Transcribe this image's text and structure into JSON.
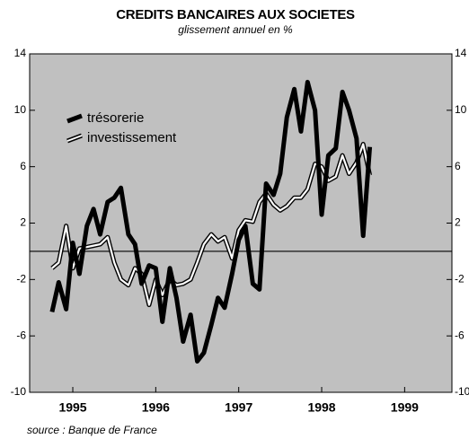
{
  "chart_data": {
    "type": "line",
    "title": "CREDITS BANCAIRES AUX SOCIETES",
    "subtitle": "glissement annuel en %",
    "source": "source : Banque de France",
    "x": [
      1995.25,
      1995.33,
      1995.42,
      1995.5,
      1995.58,
      1995.67,
      1995.75,
      1995.83,
      1995.92,
      1996.0,
      1996.08,
      1996.17,
      1996.25,
      1996.33,
      1996.42,
      1996.5,
      1996.58,
      1996.67,
      1996.75,
      1996.83,
      1996.92,
      1997.0,
      1997.08,
      1997.17,
      1997.25,
      1997.33,
      1997.42,
      1997.5,
      1997.58,
      1997.67,
      1997.75,
      1997.83,
      1997.92,
      1998.0,
      1998.08,
      1998.17,
      1998.25,
      1998.33,
      1998.42,
      1998.5,
      1998.58,
      1998.67,
      1998.75,
      1998.83,
      1998.92,
      1999.0,
      1999.08
    ],
    "series": [
      {
        "name": "investissement",
        "color": "#ffffff",
        "outline": "#000000",
        "values": [
          -1.2,
          -0.8,
          1.8,
          -1.2,
          0.2,
          0.3,
          0.4,
          0.5,
          1.0,
          -0.8,
          -2.0,
          -2.4,
          -1.2,
          -1.6,
          -3.8,
          -2.0,
          -3.1,
          -2.0,
          -2.4,
          -2.3,
          -2.0,
          -0.8,
          0.5,
          1.2,
          0.7,
          1.0,
          -0.5,
          1.5,
          2.2,
          2.1,
          3.5,
          4.1,
          3.3,
          2.9,
          3.2,
          3.8,
          3.8,
          4.4,
          6.2,
          6.0,
          5.0,
          5.3,
          6.8,
          5.5,
          6.3,
          7.6,
          5.4
        ]
      },
      {
        "name": "trésorerie",
        "color": "#000000",
        "values": [
          -4.3,
          -2.2,
          -4.1,
          0.6,
          -1.6,
          1.8,
          3.0,
          1.2,
          3.5,
          3.8,
          4.5,
          1.2,
          0.5,
          -2.3,
          -1.0,
          -1.2,
          -5.0,
          -1.2,
          -3.3,
          -6.4,
          -4.5,
          -7.8,
          -7.2,
          -5.2,
          -3.3,
          -4.0,
          -1.6,
          0.8,
          1.8,
          -2.3,
          -2.7,
          4.8,
          4.0,
          5.5,
          9.5,
          11.5,
          8.5,
          12.0,
          10.0,
          2.6,
          6.8,
          7.3,
          11.3,
          10.0,
          8.0,
          1.1,
          7.4
        ]
      }
    ],
    "xlim": [
      1994.98,
      2000.07
    ],
    "xticks": [
      {
        "value": 1995.5,
        "label": "1995"
      },
      {
        "value": 1996.5,
        "label": "1996"
      },
      {
        "value": 1997.5,
        "label": "1997"
      },
      {
        "value": 1998.5,
        "label": "1998"
      },
      {
        "value": 1999.5,
        "label": "1999"
      }
    ],
    "ylim": [
      -10,
      14
    ],
    "yticks": [
      -10,
      -6,
      -2,
      2,
      6,
      10,
      14
    ],
    "legend": "upper left",
    "background": "#c0c0c0"
  }
}
